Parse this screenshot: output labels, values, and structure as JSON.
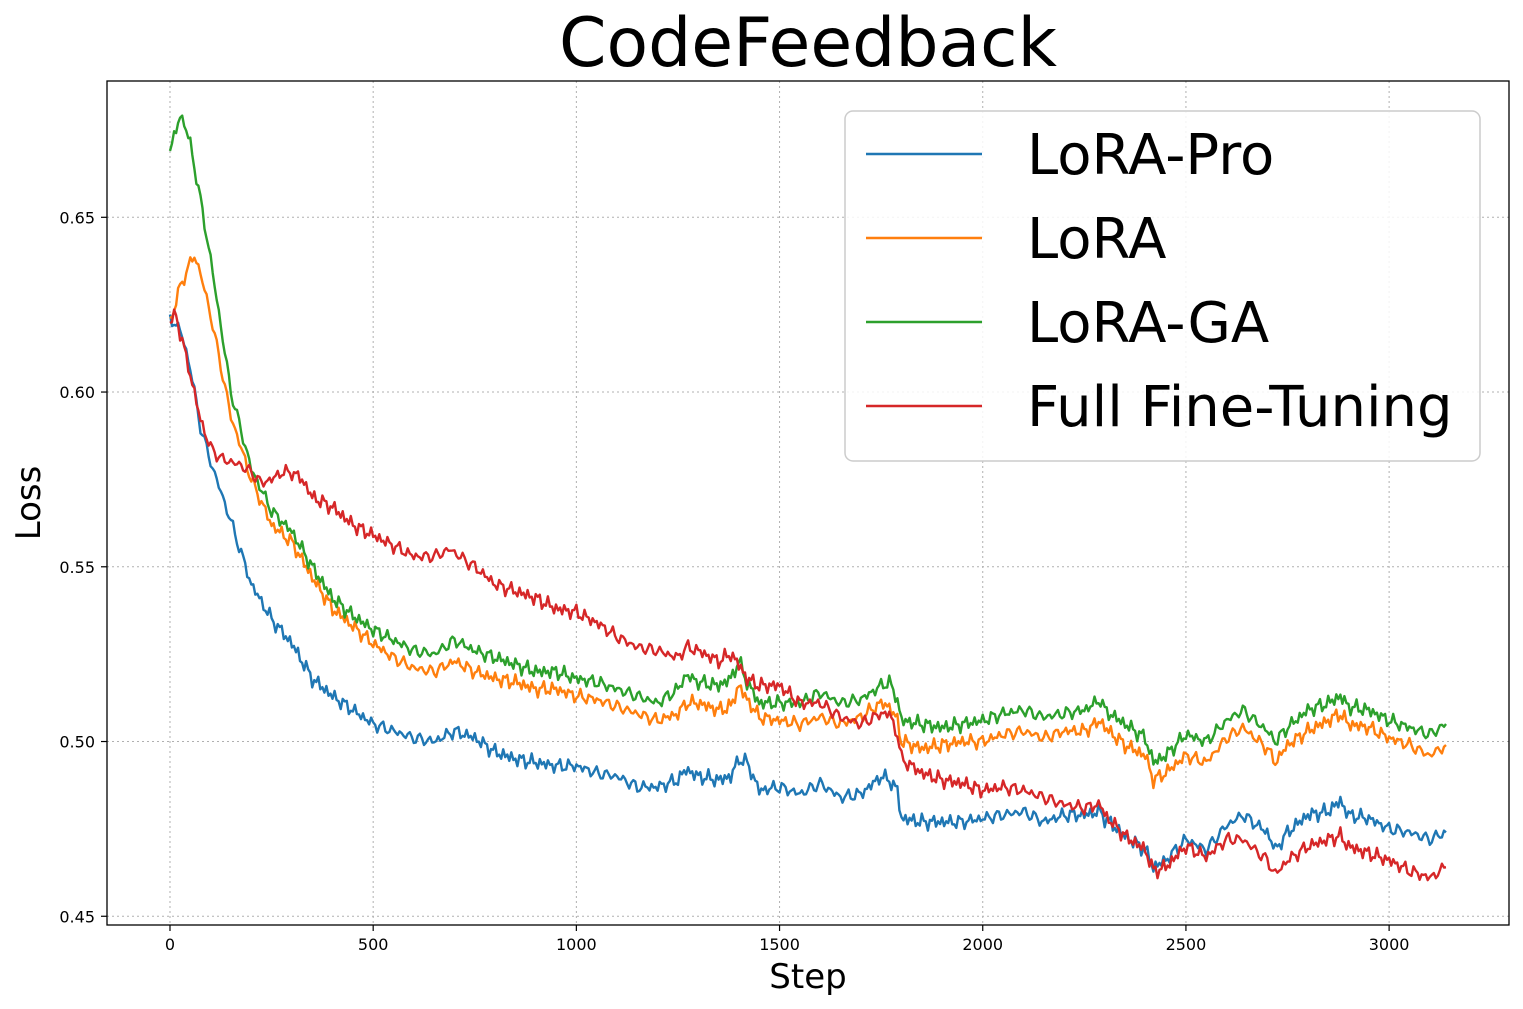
{
  "chart_data": {
    "type": "line",
    "title": "CodeFeedback",
    "xlabel": "Step",
    "ylabel": "Loss",
    "xlim": [
      -155,
      3295
    ],
    "ylim": [
      0.4475,
      0.689
    ],
    "xticks": [
      0,
      500,
      1000,
      1500,
      2000,
      2500,
      3000
    ],
    "yticks": [
      0.45,
      0.5,
      0.55,
      0.6,
      0.65
    ],
    "ytick_labels": [
      "0.45",
      "0.50",
      "0.55",
      "0.60",
      "0.65"
    ],
    "grid": true,
    "legend_position": "top-right",
    "series": [
      {
        "name": "LoRA-Pro",
        "color": "#1f77b4",
        "x": [
          0,
          25,
          50,
          75,
          100,
          150,
          200,
          250,
          300,
          350,
          400,
          450,
          500,
          550,
          600,
          650,
          700,
          750,
          800,
          850,
          900,
          950,
          1000,
          1050,
          1100,
          1150,
          1200,
          1250,
          1270,
          1300,
          1350,
          1380,
          1400,
          1420,
          1450,
          1500,
          1550,
          1600,
          1650,
          1700,
          1750,
          1770,
          1790,
          1800,
          1850,
          1900,
          1950,
          2000,
          2050,
          2100,
          2150,
          2200,
          2250,
          2290,
          2300,
          2350,
          2400,
          2420,
          2450,
          2500,
          2550,
          2600,
          2640,
          2700,
          2720,
          2750,
          2800,
          2850,
          2880,
          2900,
          2950,
          3000,
          3050,
          3100,
          3140
        ],
        "values": [
          0.621,
          0.618,
          0.607,
          0.59,
          0.58,
          0.563,
          0.545,
          0.535,
          0.528,
          0.518,
          0.513,
          0.509,
          0.505,
          0.503,
          0.501,
          0.5,
          0.503,
          0.501,
          0.497,
          0.495,
          0.494,
          0.493,
          0.493,
          0.491,
          0.49,
          0.487,
          0.487,
          0.489,
          0.492,
          0.49,
          0.489,
          0.49,
          0.495,
          0.494,
          0.486,
          0.487,
          0.485,
          0.488,
          0.484,
          0.485,
          0.49,
          0.489,
          0.486,
          0.478,
          0.477,
          0.477,
          0.477,
          0.478,
          0.479,
          0.48,
          0.477,
          0.479,
          0.479,
          0.48,
          0.478,
          0.473,
          0.469,
          0.464,
          0.466,
          0.472,
          0.469,
          0.476,
          0.479,
          0.474,
          0.469,
          0.474,
          0.479,
          0.48,
          0.483,
          0.479,
          0.478,
          0.475,
          0.474,
          0.472,
          0.474
        ]
      },
      {
        "name": "LoRA",
        "color": "#ff7f0e",
        "x": [
          0,
          25,
          50,
          60,
          75,
          100,
          150,
          200,
          250,
          300,
          350,
          400,
          450,
          500,
          550,
          600,
          650,
          700,
          750,
          800,
          850,
          900,
          950,
          1000,
          1050,
          1100,
          1150,
          1200,
          1250,
          1270,
          1300,
          1350,
          1380,
          1400,
          1420,
          1450,
          1500,
          1550,
          1600,
          1650,
          1700,
          1750,
          1770,
          1790,
          1800,
          1850,
          1900,
          1950,
          2000,
          2050,
          2100,
          2150,
          2200,
          2250,
          2290,
          2300,
          2350,
          2400,
          2420,
          2450,
          2500,
          2550,
          2600,
          2640,
          2700,
          2720,
          2750,
          2800,
          2850,
          2880,
          2900,
          2950,
          3000,
          3050,
          3100,
          3140
        ],
        "values": [
          0.62,
          0.63,
          0.637,
          0.639,
          0.634,
          0.622,
          0.593,
          0.575,
          0.562,
          0.557,
          0.547,
          0.538,
          0.533,
          0.528,
          0.524,
          0.521,
          0.52,
          0.523,
          0.52,
          0.518,
          0.517,
          0.515,
          0.515,
          0.513,
          0.512,
          0.51,
          0.508,
          0.506,
          0.508,
          0.511,
          0.511,
          0.509,
          0.51,
          0.516,
          0.512,
          0.507,
          0.506,
          0.505,
          0.507,
          0.505,
          0.507,
          0.511,
          0.51,
          0.506,
          0.5,
          0.498,
          0.499,
          0.5,
          0.5,
          0.502,
          0.503,
          0.501,
          0.503,
          0.503,
          0.506,
          0.504,
          0.499,
          0.496,
          0.489,
          0.491,
          0.496,
          0.494,
          0.501,
          0.504,
          0.498,
          0.494,
          0.499,
          0.503,
          0.506,
          0.508,
          0.505,
          0.504,
          0.501,
          0.499,
          0.496,
          0.499
        ]
      },
      {
        "name": "LoRA-GA",
        "color": "#2ca02c",
        "x": [
          0,
          15,
          25,
          35,
          50,
          75,
          100,
          150,
          200,
          250,
          300,
          350,
          400,
          450,
          500,
          550,
          600,
          650,
          700,
          750,
          800,
          850,
          900,
          950,
          1000,
          1050,
          1100,
          1150,
          1200,
          1250,
          1270,
          1300,
          1350,
          1380,
          1400,
          1420,
          1450,
          1500,
          1550,
          1600,
          1650,
          1700,
          1750,
          1770,
          1790,
          1800,
          1850,
          1900,
          1950,
          2000,
          2050,
          2100,
          2150,
          2200,
          2250,
          2290,
          2300,
          2350,
          2400,
          2420,
          2450,
          2500,
          2550,
          2600,
          2640,
          2700,
          2720,
          2750,
          2800,
          2850,
          2880,
          2900,
          2950,
          3000,
          3050,
          3100,
          3140
        ],
        "values": [
          0.669,
          0.675,
          0.679,
          0.677,
          0.671,
          0.655,
          0.638,
          0.6,
          0.578,
          0.566,
          0.56,
          0.55,
          0.541,
          0.536,
          0.532,
          0.529,
          0.526,
          0.525,
          0.529,
          0.526,
          0.524,
          0.522,
          0.52,
          0.52,
          0.518,
          0.517,
          0.515,
          0.513,
          0.511,
          0.515,
          0.519,
          0.517,
          0.516,
          0.518,
          0.523,
          0.517,
          0.511,
          0.511,
          0.511,
          0.514,
          0.511,
          0.512,
          0.516,
          0.517,
          0.512,
          0.506,
          0.505,
          0.504,
          0.505,
          0.506,
          0.508,
          0.509,
          0.507,
          0.508,
          0.509,
          0.512,
          0.509,
          0.505,
          0.501,
          0.494,
          0.496,
          0.502,
          0.5,
          0.506,
          0.509,
          0.503,
          0.5,
          0.504,
          0.509,
          0.511,
          0.513,
          0.51,
          0.509,
          0.506,
          0.504,
          0.502,
          0.505
        ]
      },
      {
        "name": "Full Fine-Tuning",
        "color": "#d62728",
        "x": [
          0,
          15,
          25,
          50,
          75,
          100,
          125,
          150,
          175,
          200,
          225,
          250,
          275,
          300,
          325,
          350,
          400,
          450,
          500,
          550,
          600,
          650,
          690,
          700,
          750,
          800,
          850,
          900,
          950,
          1000,
          1050,
          1100,
          1150,
          1200,
          1250,
          1270,
          1300,
          1350,
          1380,
          1400,
          1420,
          1450,
          1500,
          1550,
          1600,
          1650,
          1700,
          1750,
          1770,
          1790,
          1800,
          1850,
          1900,
          1950,
          2000,
          2050,
          2100,
          2150,
          2200,
          2250,
          2290,
          2300,
          2350,
          2400,
          2420,
          2450,
          2500,
          2550,
          2600,
          2640,
          2700,
          2720,
          2750,
          2800,
          2850,
          2880,
          2900,
          2950,
          3000,
          3050,
          3100,
          3140
        ],
        "values": [
          0.62,
          0.622,
          0.617,
          0.605,
          0.592,
          0.584,
          0.581,
          0.58,
          0.579,
          0.577,
          0.574,
          0.575,
          0.577,
          0.577,
          0.575,
          0.57,
          0.567,
          0.562,
          0.559,
          0.556,
          0.553,
          0.553,
          0.555,
          0.554,
          0.55,
          0.545,
          0.543,
          0.541,
          0.538,
          0.537,
          0.534,
          0.53,
          0.527,
          0.526,
          0.524,
          0.527,
          0.526,
          0.523,
          0.525,
          0.522,
          0.518,
          0.516,
          0.516,
          0.511,
          0.511,
          0.507,
          0.505,
          0.508,
          0.508,
          0.502,
          0.495,
          0.491,
          0.489,
          0.488,
          0.486,
          0.487,
          0.486,
          0.484,
          0.482,
          0.481,
          0.482,
          0.479,
          0.473,
          0.469,
          0.463,
          0.464,
          0.47,
          0.467,
          0.472,
          0.472,
          0.466,
          0.462,
          0.466,
          0.47,
          0.472,
          0.473,
          0.47,
          0.468,
          0.466,
          0.463,
          0.461,
          0.464
        ]
      }
    ]
  }
}
